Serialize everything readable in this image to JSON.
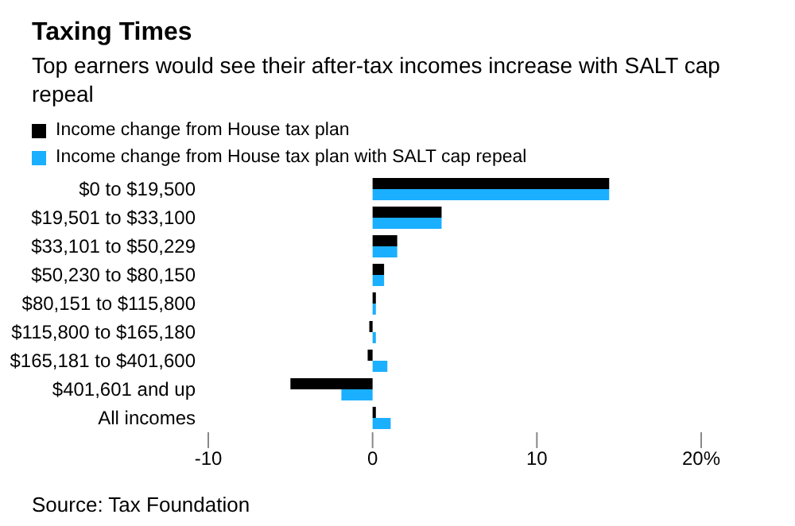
{
  "chart_data": {
    "type": "bar",
    "orientation": "horizontal",
    "title": "Taxing Times",
    "subtitle": "Top earners would see their after-tax incomes increase with SALT cap repeal",
    "categories": [
      "$0 to $19,500",
      "$19,501 to $33,100",
      "$33,101 to $50,229",
      "$50,230 to $80,150",
      "$80,151 to $115,800",
      "$115,800 to $165,180",
      "$165,181 to $401,600",
      "$401,601 and up",
      "All incomes"
    ],
    "series": [
      {
        "name": "Income change from House tax plan",
        "color": "#000000",
        "values": [
          14.4,
          4.2,
          1.5,
          0.7,
          0.2,
          -0.2,
          -0.3,
          -5.0,
          0.2
        ]
      },
      {
        "name": "Income change from House tax plan with SALT cap repeal",
        "color": "#1aafff",
        "values": [
          14.4,
          4.2,
          1.5,
          0.7,
          0.2,
          0.2,
          0.9,
          -1.9,
          1.1
        ]
      }
    ],
    "xlim": [
      -10,
      20
    ],
    "xticks": [
      -10,
      0,
      10,
      {
        "value": 20,
        "label": "20%"
      }
    ],
    "grid": false,
    "legend": "top left",
    "annotations": [
      "Source: Tax Foundation"
    ]
  }
}
